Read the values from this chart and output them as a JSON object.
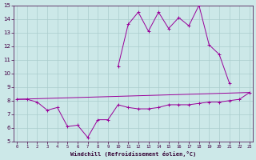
{
  "xlabel": "Windchill (Refroidissement éolien,°C)",
  "x_all": [
    0,
    1,
    2,
    3,
    4,
    5,
    6,
    7,
    8,
    9,
    10,
    11,
    12,
    13,
    14,
    15,
    16,
    17,
    18,
    19,
    20,
    21,
    22,
    23
  ],
  "line_bottom": [
    8.1,
    8.1,
    7.9,
    7.3,
    7.5,
    6.1,
    6.2,
    5.3,
    6.6,
    6.6,
    7.7,
    7.5,
    7.4,
    7.4,
    7.5,
    7.7,
    7.7,
    7.7,
    7.8,
    7.9,
    7.9,
    8.0,
    8.1,
    8.6
  ],
  "line_upper_x": [
    10,
    11,
    12,
    13,
    14,
    15,
    16,
    17,
    18,
    19,
    20,
    21
  ],
  "line_upper_y": [
    10.5,
    13.6,
    14.5,
    13.1,
    14.5,
    13.3,
    14.1,
    13.5,
    15.0,
    12.1,
    11.4,
    9.3
  ],
  "line_trend_x": [
    0,
    23
  ],
  "line_trend_y": [
    8.1,
    8.6
  ],
  "color": "#990099",
  "bg_color": "#cce8e8",
  "grid_color": "#aacccc",
  "xlim": [
    -0.3,
    23.3
  ],
  "ylim": [
    5,
    15
  ],
  "yticks": [
    5,
    6,
    7,
    8,
    9,
    10,
    11,
    12,
    13,
    14,
    15
  ],
  "xticks": [
    0,
    1,
    2,
    3,
    4,
    5,
    6,
    7,
    8,
    9,
    10,
    11,
    12,
    13,
    14,
    15,
    16,
    17,
    18,
    19,
    20,
    21,
    22,
    23
  ]
}
